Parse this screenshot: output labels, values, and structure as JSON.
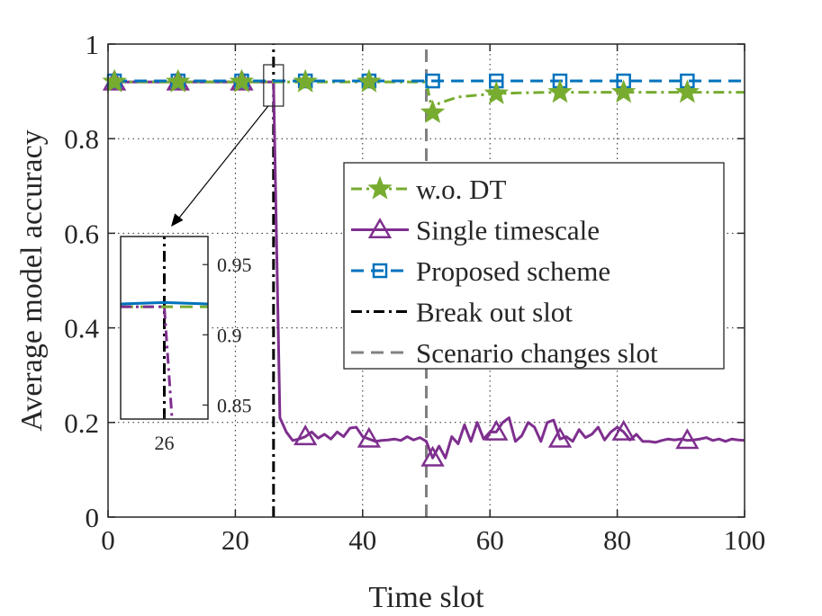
{
  "chart_data": [
    {
      "type": "line",
      "title": "",
      "xlabel": "Time slot",
      "ylabel": "Average model accuracy",
      "xlim": [
        0,
        100
      ],
      "ylim": [
        0,
        1
      ],
      "xticks": [
        "0",
        "20",
        "40",
        "60",
        "80",
        "100"
      ],
      "yticks": [
        "0",
        "0.2",
        "0.4",
        "0.6",
        "0.8",
        "1"
      ],
      "grid": true,
      "legend_position": "center-right",
      "series": [
        {
          "name": "w.o. DT",
          "color": "#77ac30",
          "line_style": "dash-dot",
          "marker": "star",
          "marker_x": [
            1,
            11,
            21,
            31,
            41,
            51,
            61,
            71,
            81,
            91
          ],
          "x": [
            1,
            5,
            10,
            15,
            20,
            25,
            26,
            30,
            35,
            40,
            45,
            50,
            51,
            52,
            55,
            58,
            61,
            65,
            70,
            75,
            80,
            85,
            90,
            95,
            100
          ],
          "y": [
            0.92,
            0.92,
            0.92,
            0.92,
            0.92,
            0.92,
            0.92,
            0.92,
            0.92,
            0.92,
            0.92,
            0.92,
            0.855,
            0.875,
            0.888,
            0.892,
            0.895,
            0.897,
            0.898,
            0.898,
            0.898,
            0.898,
            0.898,
            0.898,
            0.898
          ]
        },
        {
          "name": "Single timescale",
          "color": "#7e2f8e",
          "line_style": "solid",
          "marker": "triangle",
          "marker_x": [
            1,
            11,
            21,
            31,
            41,
            51,
            61,
            71,
            81,
            91
          ],
          "x": [
            1,
            5,
            10,
            15,
            20,
            25,
            26,
            27,
            28,
            29,
            30,
            31,
            32,
            33,
            34,
            35,
            36,
            37,
            38,
            39,
            40,
            41,
            42,
            43,
            44,
            45,
            46,
            47,
            48,
            49,
            50,
            51,
            52,
            53,
            54,
            55,
            56,
            57,
            58,
            59,
            60,
            61,
            62,
            63,
            64,
            65,
            66,
            67,
            68,
            69,
            70,
            71,
            72,
            73,
            74,
            75,
            76,
            77,
            78,
            79,
            80,
            81,
            82,
            83,
            84,
            85,
            86,
            87,
            88,
            89,
            90,
            91,
            92,
            93,
            94,
            95,
            96,
            97,
            98,
            99,
            100
          ],
          "y": [
            0.92,
            0.92,
            0.92,
            0.92,
            0.92,
            0.92,
            0.92,
            0.21,
            0.18,
            0.162,
            0.165,
            0.17,
            0.18,
            0.167,
            0.175,
            0.165,
            0.18,
            0.17,
            0.188,
            0.19,
            0.17,
            0.165,
            0.16,
            0.162,
            0.163,
            0.165,
            0.162,
            0.17,
            0.163,
            0.168,
            0.16,
            0.125,
            0.15,
            0.125,
            0.17,
            0.155,
            0.195,
            0.16,
            0.2,
            0.165,
            0.18,
            0.18,
            0.2,
            0.21,
            0.16,
            0.172,
            0.2,
            0.19,
            0.16,
            0.2,
            0.205,
            0.165,
            0.17,
            0.16,
            0.185,
            0.168,
            0.175,
            0.19,
            0.163,
            0.18,
            0.19,
            0.18,
            0.163,
            0.175,
            0.16,
            0.16,
            0.158,
            0.162,
            0.165,
            0.163,
            0.165,
            0.162,
            0.163,
            0.165,
            0.168,
            0.162,
            0.165,
            0.16,
            0.165,
            0.163,
            0.162
          ]
        },
        {
          "name": "Proposed scheme",
          "color": "#0072bd",
          "line_style": "dashed",
          "marker": "square",
          "marker_x": [
            1,
            11,
            21,
            31,
            41,
            51,
            61,
            71,
            81,
            91
          ],
          "x": [
            1,
            100
          ],
          "y": [
            0.922,
            0.922
          ]
        },
        {
          "name": "Break out slot",
          "color": "#000000",
          "line_style": "dash-dot",
          "marker": "none",
          "x": [
            26,
            26
          ],
          "y": [
            0,
            1
          ]
        },
        {
          "name": "Scenario changes slot",
          "color": "#808080",
          "line_style": "dashed",
          "marker": "none",
          "x": [
            50,
            50
          ],
          "y": [
            0,
            1
          ]
        }
      ]
    },
    {
      "type": "line",
      "title": "",
      "xlabel": "",
      "ylabel": "",
      "xlim": [
        25.6,
        26.4
      ],
      "ylim": [
        0.84,
        0.97
      ],
      "xticks": [
        "26"
      ],
      "yticks": [
        "0.85",
        "0.9",
        "0.95"
      ],
      "grid": false,
      "series": [
        {
          "color": "#0072bd",
          "line_style": "solid",
          "x": [
            25.6,
            26,
            26.4
          ],
          "y": [
            0.922,
            0.923,
            0.922
          ]
        },
        {
          "color": "#77ac30",
          "line_style": "dashed",
          "x": [
            25.6,
            26,
            26.4
          ],
          "y": [
            0.92,
            0.92,
            0.92
          ]
        },
        {
          "color": "#7e2f8e",
          "line_style": "dash-dot",
          "x": [
            25.6,
            26,
            26.07
          ],
          "y": [
            0.92,
            0.92,
            0.841
          ]
        },
        {
          "color": "#000000",
          "line_style": "dash-dot",
          "x": [
            26,
            26
          ],
          "y": [
            0.84,
            0.97
          ]
        }
      ]
    }
  ]
}
